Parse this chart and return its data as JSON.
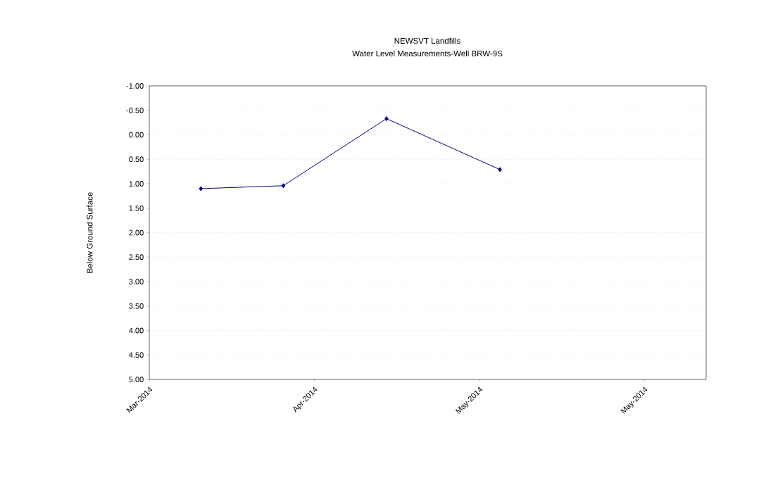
{
  "chart_data": {
    "type": "line",
    "title": "NEWSVT Landfills",
    "subtitle": "Water Level Measurements-Well BRW-9S",
    "ylabel": "Below  Ground  Surface",
    "x": [
      "2014-04-05",
      "2014-04-13",
      "2014-04-23",
      "2014-05-04"
    ],
    "series": [
      {
        "color": "#000080",
        "values": [
          1.1,
          1.04,
          -0.33,
          0.71
        ]
      }
    ],
    "xlim": [
      "2014-03-31",
      "2014-05-24"
    ],
    "xticks": [
      {
        "value": "2014-03-31",
        "label": "Mar-2014"
      },
      {
        "value": "2014-04-16",
        "label": "Apr-2014"
      },
      {
        "value": "2014-05-02",
        "label": "May-2014"
      },
      {
        "value": "2014-05-18",
        "label": "May-2014"
      }
    ],
    "ylim": [
      5,
      -1
    ],
    "yticks": [
      {
        "value": -1,
        "label": "-1.00"
      },
      {
        "value": -0.5,
        "label": "-0.50"
      },
      {
        "value": 0,
        "label": "0.00"
      },
      {
        "value": 0.5,
        "label": "0.50"
      },
      {
        "value": 1,
        "label": "1.00"
      },
      {
        "value": 1.5,
        "label": "1.50"
      },
      {
        "value": 2,
        "label": "2.00"
      },
      {
        "value": 2.5,
        "label": "2.50"
      },
      {
        "value": 3,
        "label": "3.00"
      },
      {
        "value": 3.5,
        "label": "3.50"
      },
      {
        "value": 4,
        "label": "4.00"
      },
      {
        "value": 4.5,
        "label": "4.50"
      },
      {
        "value": 5,
        "label": "5.00"
      }
    ],
    "grid": "y",
    "marker": "diamond",
    "line_style": "solid"
  }
}
